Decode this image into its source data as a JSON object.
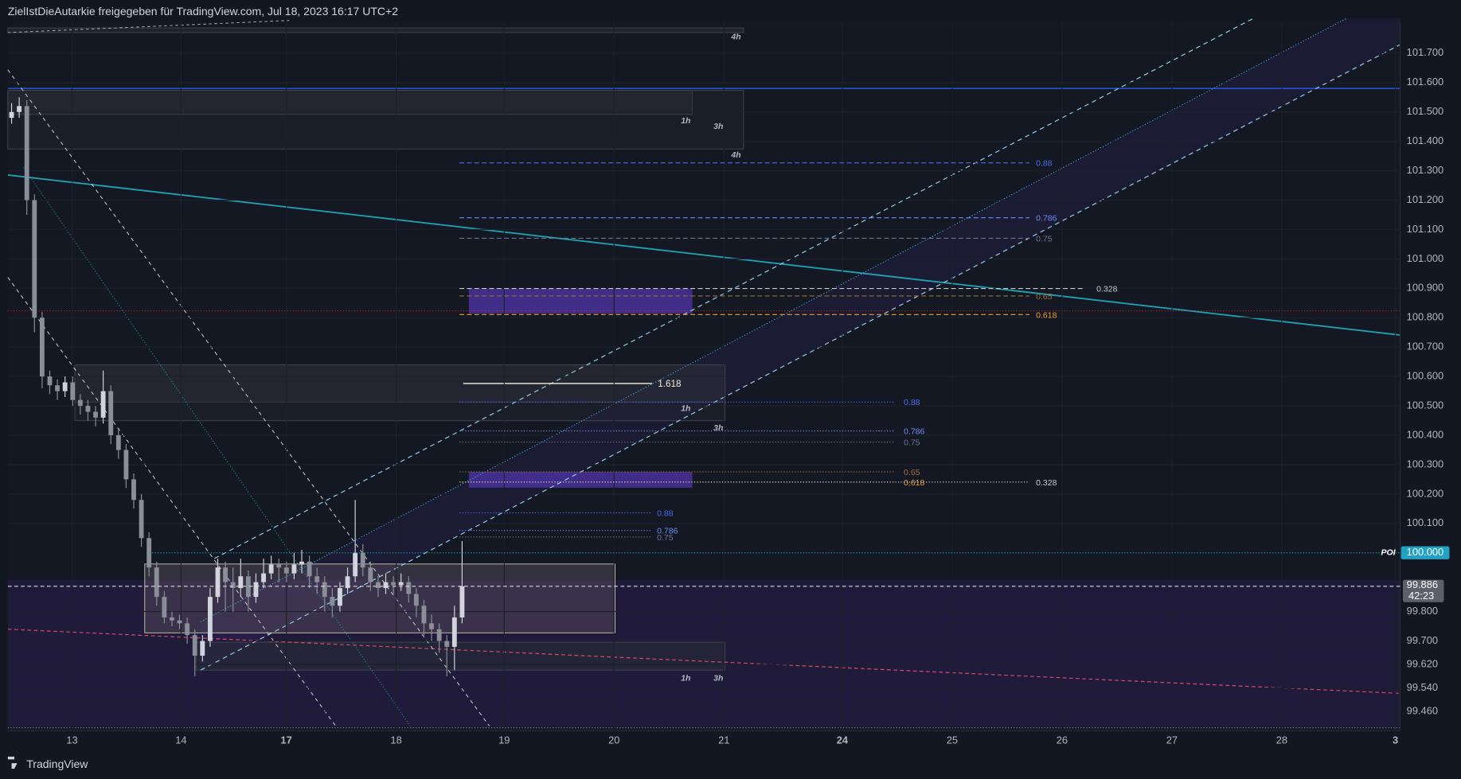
{
  "header": {
    "title": "ZielIstDieAutarkie freigegeben für TradingView.com, Jul 18, 2023 16:17 UTC+2"
  },
  "footer": {
    "brand": "TradingView"
  },
  "chart_data": {
    "type": "candlestick",
    "open": [
      101.48,
      101.5,
      101.52,
      101.2,
      100.8,
      100.6,
      100.57,
      100.55,
      100.58,
      100.52,
      100.5,
      100.48,
      100.46,
      100.55,
      100.4,
      100.35,
      100.25,
      100.18,
      100.05,
      99.95,
      99.85,
      99.78,
      99.77,
      99.76,
      99.72,
      99.65,
      99.7,
      99.85,
      99.95,
      99.9,
      99.88,
      99.92,
      99.85,
      99.9,
      99.93,
      99.96,
      99.95,
      99.93,
      99.96,
      99.97,
      99.92,
      99.9,
      99.85,
      99.82,
      99.88,
      99.92,
      100.0,
      99.95,
      99.9,
      99.88,
      99.9,
      99.89,
      99.9,
      99.86,
      99.82,
      99.76,
      99.74,
      99.7,
      99.68,
      99.78
    ],
    "high": [
      101.53,
      101.55,
      101.54,
      101.22,
      100.82,
      100.62,
      100.59,
      100.6,
      100.6,
      100.54,
      100.52,
      100.5,
      100.62,
      100.57,
      100.42,
      100.37,
      100.27,
      100.2,
      100.07,
      99.97,
      99.87,
      99.8,
      99.79,
      99.78,
      99.74,
      99.72,
      99.88,
      99.98,
      99.97,
      99.95,
      99.98,
      99.94,
      99.93,
      99.98,
      99.99,
      99.98,
      99.97,
      100.0,
      100.01,
      99.99,
      99.95,
      99.92,
      99.88,
      99.9,
      99.95,
      100.18,
      100.03,
      99.97,
      99.92,
      99.93,
      99.92,
      99.93,
      99.92,
      99.88,
      99.84,
      99.79,
      99.76,
      99.72,
      99.82,
      100.04
    ],
    "low": [
      101.46,
      101.48,
      101.15,
      100.75,
      100.56,
      100.54,
      100.52,
      100.53,
      100.5,
      100.47,
      100.45,
      100.43,
      100.44,
      100.37,
      100.32,
      100.22,
      100.15,
      100.02,
      99.92,
      99.82,
      99.76,
      99.75,
      99.74,
      99.69,
      99.58,
      99.63,
      99.68,
      99.83,
      99.8,
      99.8,
      99.85,
      99.8,
      99.83,
      99.88,
      99.91,
      99.9,
      99.9,
      99.91,
      99.93,
      99.88,
      99.86,
      99.8,
      99.78,
      99.8,
      99.86,
      99.9,
      99.92,
      99.87,
      99.85,
      99.86,
      99.86,
      99.87,
      99.83,
      99.78,
      99.72,
      99.7,
      99.66,
      99.58,
      99.6,
      99.76
    ],
    "close": [
      101.5,
      101.52,
      101.2,
      100.8,
      100.6,
      100.57,
      100.55,
      100.58,
      100.52,
      100.5,
      100.48,
      100.46,
      100.55,
      100.4,
      100.35,
      100.25,
      100.18,
      100.05,
      99.95,
      99.85,
      99.78,
      99.77,
      99.76,
      99.72,
      99.65,
      99.7,
      99.85,
      99.95,
      99.9,
      99.88,
      99.92,
      99.85,
      99.9,
      99.93,
      99.96,
      99.95,
      99.93,
      99.96,
      99.97,
      99.92,
      99.9,
      99.85,
      99.82,
      99.88,
      99.92,
      100.0,
      99.95,
      99.9,
      99.88,
      99.9,
      99.89,
      99.9,
      99.86,
      99.82,
      99.76,
      99.74,
      99.7,
      99.68,
      99.78,
      99.886
    ],
    "up_color": "#d1d4dc",
    "down_color": "#8a8e99",
    "ylim": [
      99.395,
      101.805
    ],
    "yticks": [
      {
        "value": 101.7,
        "label": "101.700"
      },
      {
        "value": 101.6,
        "label": "101.600"
      },
      {
        "value": 101.5,
        "label": "101.500"
      },
      {
        "value": 101.4,
        "label": "101.400"
      },
      {
        "value": 101.3,
        "label": "101.300"
      },
      {
        "value": 101.2,
        "label": "101.200"
      },
      {
        "value": 101.1,
        "label": "101.100"
      },
      {
        "value": 101.0,
        "label": "101.000"
      },
      {
        "value": 100.9,
        "label": "100.900"
      },
      {
        "value": 100.8,
        "label": "100.800"
      },
      {
        "value": 100.7,
        "label": "100.700"
      },
      {
        "value": 100.6,
        "label": "100.600"
      },
      {
        "value": 100.5,
        "label": "100.500"
      },
      {
        "value": 100.4,
        "label": "100.400"
      },
      {
        "value": 100.3,
        "label": "100.300"
      },
      {
        "value": 100.2,
        "label": "100.200"
      },
      {
        "value": 100.1,
        "label": "100.100"
      },
      {
        "value": 99.8,
        "label": "99.800"
      },
      {
        "value": 99.7,
        "label": "99.700"
      },
      {
        "value": 99.62,
        "label": "99.620"
      },
      {
        "value": 99.54,
        "label": "99.540"
      },
      {
        "value": 99.46,
        "label": "99.460"
      }
    ],
    "time_axis": [
      "13",
      "14",
      "17",
      "18",
      "19",
      "20",
      "21",
      "24",
      "25",
      "26",
      "27",
      "28",
      "3"
    ],
    "poi": {
      "label": "POI",
      "value": {
        "value": 100,
        "label": "100.000"
      }
    },
    "last_price": {
      "value": 99.886,
      "label": "99.886",
      "countdown": "42:23"
    }
  },
  "drawings": {
    "fib_upper": [
      "0.88",
      "0.786",
      "0.75",
      "0.328",
      "0.65",
      "0.618"
    ],
    "fib_middle": [
      "0.88",
      "0.786",
      "0.75",
      "0.65",
      "0.618",
      "0.328"
    ],
    "fib_lower": [
      "0.88",
      "0.786",
      "0.75"
    ],
    "extension": "1.618",
    "zone_labels": [
      "4h",
      "1h",
      "3h",
      "4h",
      "1h",
      "3h",
      "1h",
      "3h"
    ]
  }
}
